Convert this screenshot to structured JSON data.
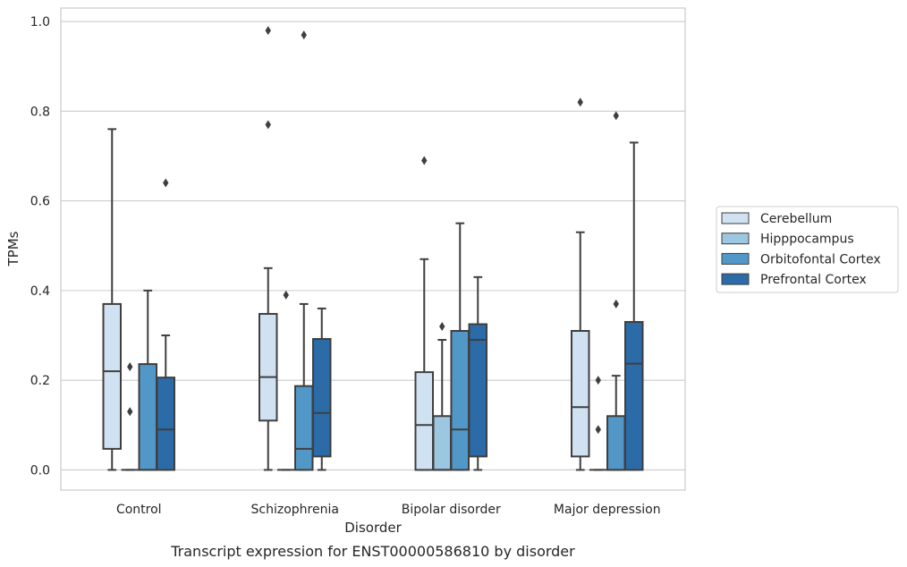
{
  "chart_data": {
    "type": "box",
    "caption": "Transcript expression for ENST00000586810 by disorder",
    "xlabel": "Disorder",
    "ylabel": "TPMs",
    "ylim": [
      -0.045,
      1.03
    ],
    "yticks": [
      0.0,
      0.2,
      0.4,
      0.6,
      0.8,
      1.0
    ],
    "ytick_labels": [
      "0.0",
      "0.2",
      "0.4",
      "0.6",
      "0.8",
      "1.0"
    ],
    "grid": true,
    "legend_position": "right",
    "categories": [
      "Control",
      "Schizophrenia",
      "Bipolar disorder",
      "Major depression"
    ],
    "series": [
      {
        "name": "Cerebellum",
        "color": "#d0e1f2",
        "boxes": [
          {
            "wlo": 0.0,
            "q1": 0.047,
            "median": 0.22,
            "q3": 0.37,
            "whi": 0.76,
            "outliers": []
          },
          {
            "wlo": 0.0,
            "q1": 0.11,
            "median": 0.207,
            "q3": 0.348,
            "whi": 0.45,
            "outliers": [
              0.98,
              0.77
            ]
          },
          {
            "wlo": 0.0,
            "q1": 0.0,
            "median": 0.1,
            "q3": 0.218,
            "whi": 0.47,
            "outliers": [
              0.69
            ]
          },
          {
            "wlo": 0.0,
            "q1": 0.03,
            "median": 0.14,
            "q3": 0.31,
            "whi": 0.53,
            "outliers": [
              0.82
            ]
          }
        ]
      },
      {
        "name": "Hipppocampus",
        "color": "#9dc6e0",
        "boxes": [
          {
            "wlo": 0.0,
            "q1": 0.0,
            "median": 0.0,
            "q3": 0.0,
            "whi": 0.0,
            "outliers": [
              0.23,
              0.13
            ]
          },
          {
            "wlo": 0.0,
            "q1": 0.0,
            "median": 0.0,
            "q3": 0.0,
            "whi": 0.0,
            "outliers": [
              0.39
            ]
          },
          {
            "wlo": 0.0,
            "q1": 0.0,
            "median": 0.0,
            "q3": 0.12,
            "whi": 0.29,
            "outliers": [
              0.32
            ]
          },
          {
            "wlo": 0.0,
            "q1": 0.0,
            "median": 0.0,
            "q3": 0.0,
            "whi": 0.0,
            "outliers": [
              0.2,
              0.09
            ]
          }
        ]
      },
      {
        "name": "Orbitofontal Cortex",
        "color": "#5198c8",
        "boxes": [
          {
            "wlo": 0.0,
            "q1": 0.0,
            "median": 0.0,
            "q3": 0.236,
            "whi": 0.4,
            "outliers": []
          },
          {
            "wlo": 0.0,
            "q1": 0.0,
            "median": 0.047,
            "q3": 0.187,
            "whi": 0.37,
            "outliers": [
              0.97
            ]
          },
          {
            "wlo": 0.0,
            "q1": 0.0,
            "median": 0.09,
            "q3": 0.31,
            "whi": 0.55,
            "outliers": []
          },
          {
            "wlo": 0.0,
            "q1": 0.0,
            "median": 0.0,
            "q3": 0.12,
            "whi": 0.21,
            "outliers": [
              0.37,
              0.79
            ]
          }
        ]
      },
      {
        "name": "Prefrontal Cortex",
        "color": "#2b6ba8",
        "boxes": [
          {
            "wlo": 0.0,
            "q1": 0.0,
            "median": 0.09,
            "q3": 0.206,
            "whi": 0.3,
            "outliers": [
              0.64
            ]
          },
          {
            "wlo": 0.0,
            "q1": 0.03,
            "median": 0.127,
            "q3": 0.292,
            "whi": 0.36,
            "outliers": []
          },
          {
            "wlo": 0.0,
            "q1": 0.03,
            "median": 0.29,
            "q3": 0.325,
            "whi": 0.43,
            "outliers": []
          },
          {
            "wlo": 0.0,
            "q1": 0.0,
            "median": 0.237,
            "q3": 0.33,
            "whi": 0.73,
            "outliers": []
          }
        ]
      }
    ]
  }
}
